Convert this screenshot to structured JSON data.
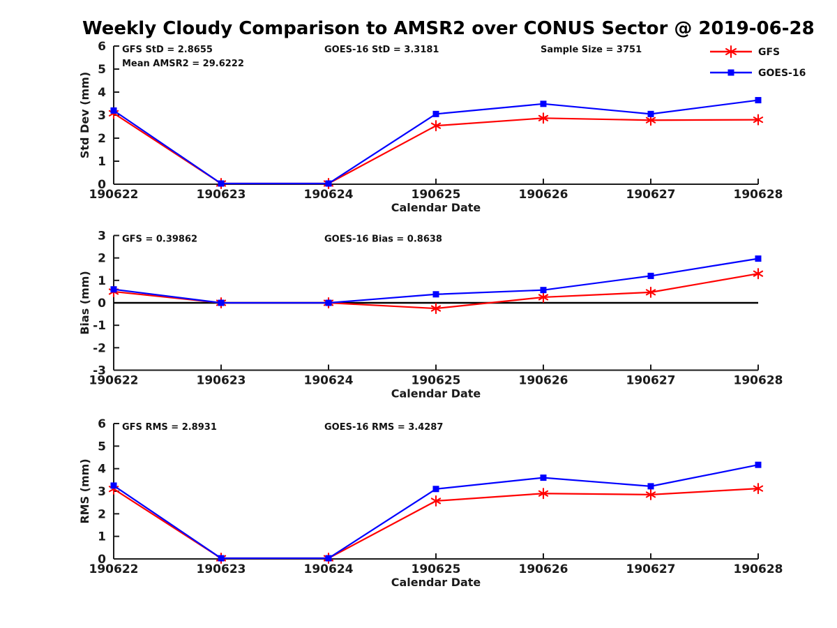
{
  "title": "Weekly Cloudy Comparison to AMSR2 over CONUS Sector @ 2019-06-28",
  "colors": {
    "gfs": "#ff0000",
    "goes16": "#0000ff",
    "axis": "#1a1a1a",
    "zero_line": "#000000",
    "background": "#ffffff"
  },
  "legend": {
    "position": "top-right",
    "entries": [
      {
        "label": "GFS",
        "marker": "asterisk",
        "color": "#ff0000"
      },
      {
        "label": "GOES-16",
        "marker": "square",
        "color": "#0000ff"
      }
    ]
  },
  "chart_data": [
    {
      "id": "stddev",
      "type": "line",
      "title": "",
      "xlabel": "Calendar Date",
      "ylabel": "Std Dev (mm)",
      "categories": [
        "190622",
        "190623",
        "190624",
        "190625",
        "190626",
        "190627",
        "190628"
      ],
      "ylim": [
        0,
        6
      ],
      "yticks": [
        0,
        1,
        2,
        3,
        4,
        5,
        6
      ],
      "grid": false,
      "zero_line": false,
      "series": [
        {
          "name": "GFS",
          "marker": "asterisk",
          "color": "#ff0000",
          "values": [
            3.08,
            0.03,
            0.03,
            2.54,
            2.87,
            2.78,
            2.8
          ]
        },
        {
          "name": "GOES-16",
          "marker": "square",
          "color": "#0000ff",
          "values": [
            3.2,
            0.03,
            0.03,
            3.05,
            3.49,
            3.05,
            3.65
          ]
        }
      ],
      "annotations": [
        {
          "text": "GFS StD = 2.8655",
          "col": 0,
          "row": 0
        },
        {
          "text": "Mean AMSR2 = 29.6222",
          "col": 0,
          "row": 1
        },
        {
          "text": "GOES-16 StD = 3.3181",
          "col": 1,
          "row": 0
        },
        {
          "text": "Sample Size = 3751",
          "col": 2,
          "row": 0
        }
      ]
    },
    {
      "id": "bias",
      "type": "line",
      "title": "",
      "xlabel": "Calendar Date",
      "ylabel": "Bias (mm)",
      "categories": [
        "190622",
        "190623",
        "190624",
        "190625",
        "190626",
        "190627",
        "190628"
      ],
      "ylim": [
        -3,
        3
      ],
      "yticks": [
        -3,
        -2,
        -1,
        0,
        1,
        2,
        3
      ],
      "grid": false,
      "zero_line": true,
      "series": [
        {
          "name": "GFS",
          "marker": "asterisk",
          "color": "#ff0000",
          "values": [
            0.5,
            0.0,
            0.0,
            -0.25,
            0.25,
            0.47,
            1.3
          ]
        },
        {
          "name": "GOES-16",
          "marker": "square",
          "color": "#0000ff",
          "values": [
            0.6,
            0.0,
            0.0,
            0.38,
            0.57,
            1.2,
            1.97
          ]
        }
      ],
      "annotations": [
        {
          "text": "GFS = 0.39862",
          "col": 0,
          "row": 0
        },
        {
          "text": "GOES-16 Bias  = 0.8638",
          "col": 1,
          "row": 0
        }
      ]
    },
    {
      "id": "rms",
      "type": "line",
      "title": "",
      "xlabel": "Calendar Date",
      "ylabel": "RMS (mm)",
      "categories": [
        "190622",
        "190623",
        "190624",
        "190625",
        "190626",
        "190627",
        "190628"
      ],
      "ylim": [
        0,
        6
      ],
      "yticks": [
        0,
        1,
        2,
        3,
        4,
        5,
        6
      ],
      "grid": false,
      "zero_line": false,
      "series": [
        {
          "name": "GFS",
          "marker": "asterisk",
          "color": "#ff0000",
          "values": [
            3.1,
            0.03,
            0.03,
            2.57,
            2.9,
            2.85,
            3.12
          ]
        },
        {
          "name": "GOES-16",
          "marker": "square",
          "color": "#0000ff",
          "values": [
            3.25,
            0.03,
            0.03,
            3.1,
            3.6,
            3.22,
            4.17
          ]
        }
      ],
      "annotations": [
        {
          "text": "GFS RMS = 2.8931",
          "col": 0,
          "row": 0
        },
        {
          "text": "GOES-16 RMS = 3.4287",
          "col": 1,
          "row": 0
        }
      ]
    }
  ]
}
